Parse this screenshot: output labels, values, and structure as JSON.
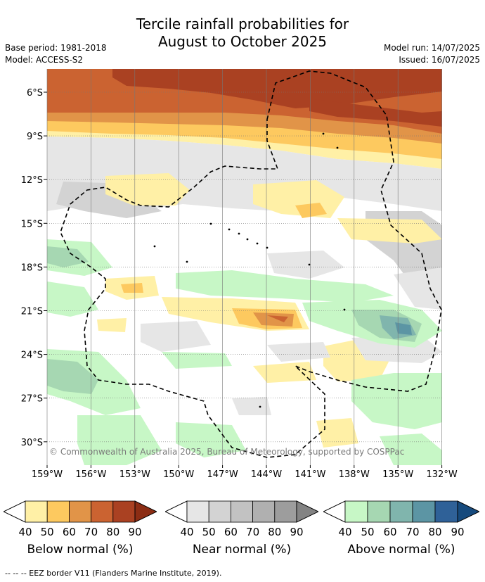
{
  "title_line1": "Tercile rainfall probabilities for",
  "title_line2": "August to October 2025",
  "base_period": "Base period: 1981-2018",
  "model": "Model: ACCESS-S2",
  "model_run": "Model run: 14/07/2025",
  "issued": "Issued: 16/07/2025",
  "lat_labels": [
    "6°S",
    "9°S",
    "12°S",
    "15°S",
    "18°S",
    "21°S",
    "24°S",
    "27°S",
    "30°S"
  ],
  "lon_labels": [
    "159°W",
    "156°W",
    "153°W",
    "150°W",
    "147°W",
    "144°W",
    "141°W",
    "138°W",
    "135°W",
    "132°W"
  ],
  "copyright": "© Commonwealth of Australia 2025, Bureau of Meteorology, supported by COSPPac",
  "legends": [
    {
      "caption": "Below normal (%)",
      "ticks": [
        "40",
        "50",
        "60",
        "70",
        "80",
        "90"
      ],
      "colors": [
        "#fff0a6",
        "#fdc95f",
        "#e19448",
        "#cb6331",
        "#aa4122",
        "#8c2d14"
      ]
    },
    {
      "caption": "Near normal (%)",
      "ticks": [
        "40",
        "50",
        "60",
        "70",
        "80",
        "90"
      ],
      "colors": [
        "#e6e6e6",
        "#d3d3d3",
        "#c2c2c2",
        "#b0b0b0",
        "#9d9d9d",
        "#838383"
      ]
    },
    {
      "caption": "Above normal (%)",
      "ticks": [
        "40",
        "50",
        "60",
        "70",
        "80",
        "90"
      ],
      "colors": [
        "#c7f7c6",
        "#a6d7b2",
        "#80b5ad",
        "#5c95a4",
        "#2f6198",
        "#164a7d"
      ]
    }
  ],
  "footer": "--  --  -- EEZ border V11 (Flanders Marine Institute, 2019)."
}
